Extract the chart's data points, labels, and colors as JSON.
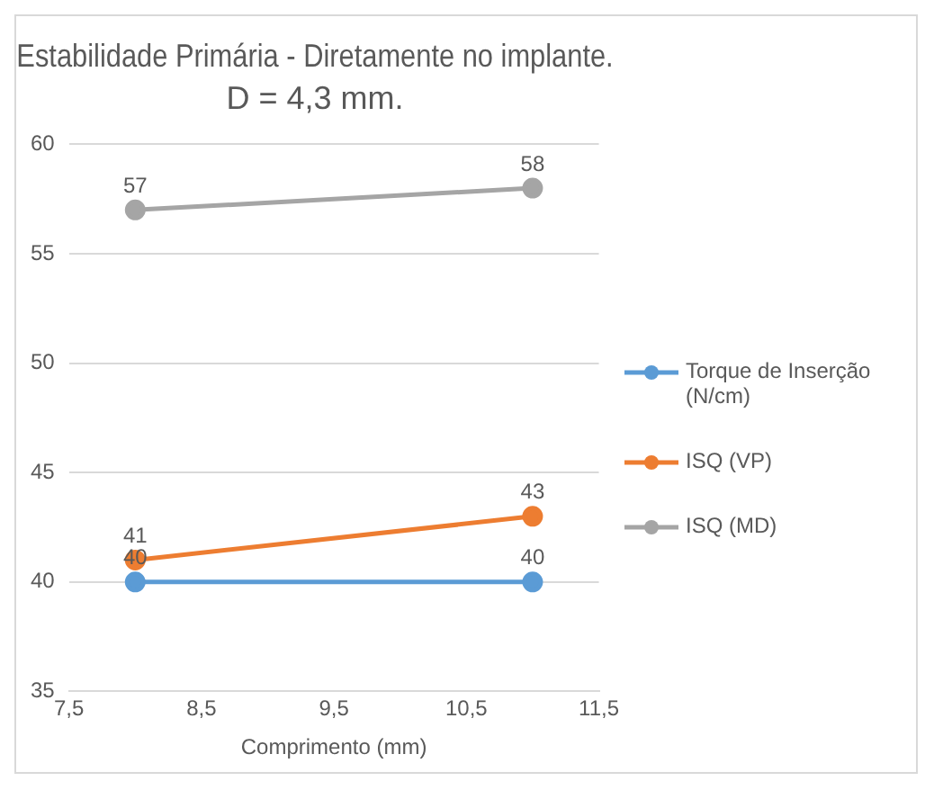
{
  "chart_data": {
    "type": "line",
    "title": "Estabilidade Primária - Diretamente no implante.",
    "subtitle": "D = 4,3 mm.",
    "xlabel": "Comprimento (mm)",
    "x": [
      8,
      11
    ],
    "series": [
      {
        "name": "Torque de Inserção (N/cm)",
        "color": "#5b9bd5",
        "values": [
          40,
          40
        ]
      },
      {
        "name": "ISQ (VP)",
        "color": "#ed7d31",
        "values": [
          41,
          43
        ]
      },
      {
        "name": "ISQ (MD)",
        "color": "#a5a5a5",
        "values": [
          57,
          58
        ]
      }
    ],
    "xlim": [
      7.5,
      11.5
    ],
    "xticks": [
      {
        "value": 7.5,
        "label": "7,5"
      },
      {
        "value": 8.5,
        "label": "8,5"
      },
      {
        "value": 9.5,
        "label": "9,5"
      },
      {
        "value": 10.5,
        "label": "10,5"
      },
      {
        "value": 11.5,
        "label": "11,5"
      }
    ],
    "ylim": [
      35,
      60
    ],
    "yticks": [
      35,
      40,
      45,
      50,
      55,
      60
    ],
    "grid": "y",
    "legend": "right",
    "marker": "circle",
    "line_style": "solid",
    "data_labels": true
  }
}
